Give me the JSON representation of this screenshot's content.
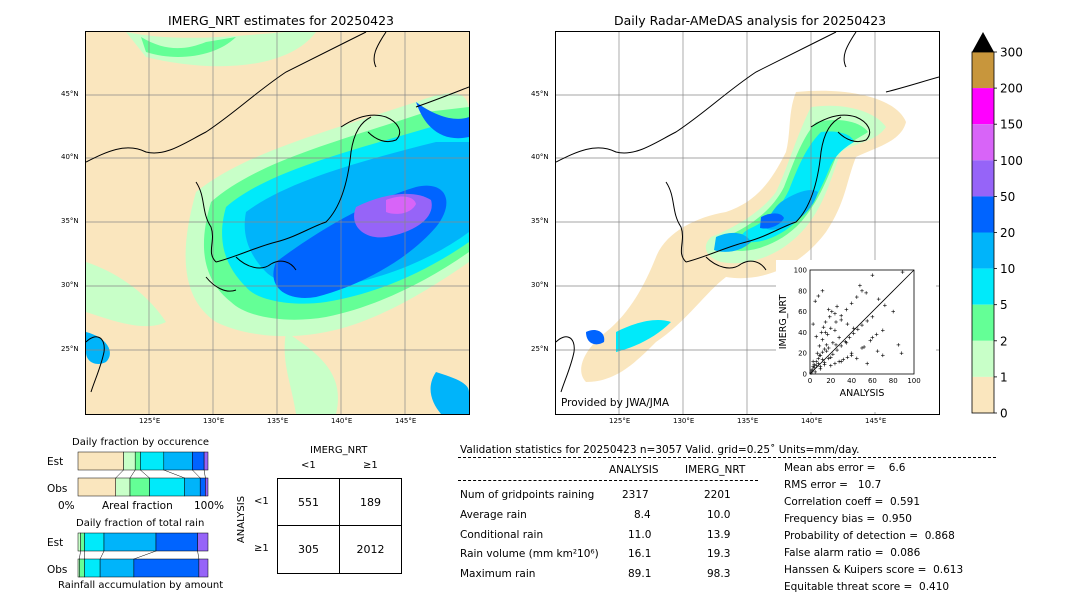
{
  "left_map": {
    "title": "IMERG_NRT estimates for 20250423",
    "lat_labels": [
      "45°N",
      "40°N",
      "35°N",
      "30°N",
      "25°N"
    ],
    "lon_labels": [
      "125°E",
      "130°E",
      "135°E",
      "140°E",
      "145°E"
    ]
  },
  "right_map": {
    "title": "Daily Radar-AMeDAS analysis for 20250423",
    "lat_labels": [
      "45°N",
      "40°N",
      "35°N",
      "30°N",
      "25°N"
    ],
    "lon_labels": [
      "125°E",
      "130°E",
      "135°E",
      "140°E",
      "145°E"
    ],
    "credit": "Provided by JWA/JMA"
  },
  "colorbar": {
    "labels": [
      "300",
      "200",
      "150",
      "100",
      "50",
      "20",
      "10",
      "5",
      "2",
      "1",
      "0"
    ],
    "colors": [
      "#c8963c",
      "#ff00ff",
      "#d864f8",
      "#9664f8",
      "#0064ff",
      "#00b4fa",
      "#00eafa",
      "#64ff96",
      "#c8ffc8",
      "#fae6be"
    ],
    "extend_color": "#000000"
  },
  "chart_data": [
    {
      "type": "scatter",
      "title": "",
      "xlabel": "ANALYSIS",
      "ylabel": "IMERG_NRT",
      "xlim": [
        0,
        100
      ],
      "ylim": [
        0,
        100
      ],
      "xticks": [
        "0",
        "20",
        "40",
        "60",
        "80",
        "100"
      ],
      "yticks": [
        "0",
        "20",
        "40",
        "60",
        "80",
        "100"
      ],
      "marker": "+",
      "reference_line": "1:1 diagonal",
      "x": [
        2,
        4,
        5,
        6,
        8,
        10,
        12,
        3,
        7,
        9,
        14,
        16,
        18,
        20,
        22,
        25,
        28,
        30,
        11,
        13,
        15,
        17,
        19,
        21,
        24,
        26,
        35,
        40,
        45,
        50,
        55,
        60,
        65,
        70,
        5,
        8,
        12,
        18,
        24,
        30,
        36,
        42,
        48,
        54,
        60,
        66,
        72,
        80,
        88,
        3,
        6,
        9,
        12,
        15,
        20,
        25,
        30,
        35,
        40,
        45,
        50,
        10,
        14,
        18,
        22,
        26,
        30,
        34,
        38,
        42,
        46,
        50,
        55,
        60,
        1,
        2,
        3,
        4,
        6,
        8,
        10,
        12,
        14,
        16,
        20,
        24,
        28,
        32,
        36,
        40,
        52,
        58,
        64,
        70,
        85,
        89
      ],
      "y": [
        3,
        6,
        2,
        8,
        10,
        5,
        14,
        12,
        20,
        18,
        9,
        22,
        25,
        16,
        30,
        28,
        35,
        12,
        40,
        45,
        50,
        38,
        55,
        60,
        42,
        65,
        30,
        20,
        15,
        25,
        10,
        35,
        22,
        18,
        70,
        75,
        80,
        62,
        58,
        52,
        48,
        44,
        85,
        78,
        95,
        72,
        66,
        60,
        20,
        48,
        36,
        27,
        33,
        40,
        44,
        50,
        56,
        62,
        68,
        74,
        80,
        7,
        11,
        15,
        19,
        23,
        27,
        31,
        35,
        39,
        43,
        47,
        51,
        55,
        1,
        4,
        7,
        9,
        12,
        15,
        18,
        21,
        24,
        28,
        8,
        10,
        12,
        14,
        16,
        18,
        26,
        32,
        38,
        42,
        28,
        98
      ]
    },
    {
      "type": "bar",
      "title": "Daily fraction by occurence",
      "categories": [
        "Est",
        "Obs"
      ],
      "xlabel": "Areal fraction",
      "x_left_label": "0%",
      "x_right_label": "100%",
      "stacked": true,
      "series_colors": [
        "#fae6be",
        "#c8ffc8",
        "#64ff96",
        "#00eafa",
        "#00b4fa",
        "#0064ff",
        "#9664f8"
      ],
      "values": [
        [
          0.35,
          0.09,
          0.04,
          0.18,
          0.22,
          0.09,
          0.03
        ],
        [
          0.29,
          0.11,
          0.15,
          0.27,
          0.12,
          0.04,
          0.02
        ]
      ]
    },
    {
      "type": "bar",
      "title": "Daily fraction of total rain",
      "categories": [
        "Est",
        "Obs"
      ],
      "xlabel": "Rainfall accumulation by amount",
      "stacked": true,
      "series_colors": [
        "#c8ffc8",
        "#64ff96",
        "#00eafa",
        "#00b4fa",
        "#0064ff",
        "#9664f8"
      ],
      "values": [
        [
          0.02,
          0.03,
          0.15,
          0.4,
          0.32,
          0.08
        ],
        [
          0.01,
          0.04,
          0.12,
          0.26,
          0.5,
          0.07
        ]
      ]
    },
    {
      "type": "table",
      "title": "IMERG_NRT",
      "row_axis_label": "ANALYSIS",
      "col_labels": [
        "<1",
        "≥1"
      ],
      "row_labels": [
        "<1",
        "≥1"
      ],
      "cells": [
        [
          "551",
          "189"
        ],
        [
          "305",
          "2012"
        ]
      ]
    }
  ],
  "validation": {
    "header": "Validation statistics for 20250423  n=3057 Valid. grid=0.25˚ Units=mm/day.",
    "col_analysis": "ANALYSIS",
    "col_imerg": "IMERG_NRT",
    "rows": [
      {
        "label": "Num of gridpoints raining",
        "analysis": "2317",
        "imerg": "2201"
      },
      {
        "label": "Average rain",
        "analysis": "8.4",
        "imerg": "10.0"
      },
      {
        "label": "Conditional rain",
        "analysis": "11.0",
        "imerg": "13.9"
      },
      {
        "label": "Rain volume (mm km²10⁶)",
        "analysis": "16.1",
        "imerg": "19.3"
      },
      {
        "label": "Maximum rain",
        "analysis": "89.1",
        "imerg": "98.3"
      }
    ],
    "scores": [
      "Mean abs error =    6.6",
      "RMS error =   10.7",
      "Correlation coeff =  0.591",
      "Frequency bias =  0.950",
      "Probability of detection =  0.868",
      "False alarm ratio =  0.086",
      "Hanssen & Kuipers score =  0.613",
      "Equitable threat score =  0.410"
    ]
  }
}
